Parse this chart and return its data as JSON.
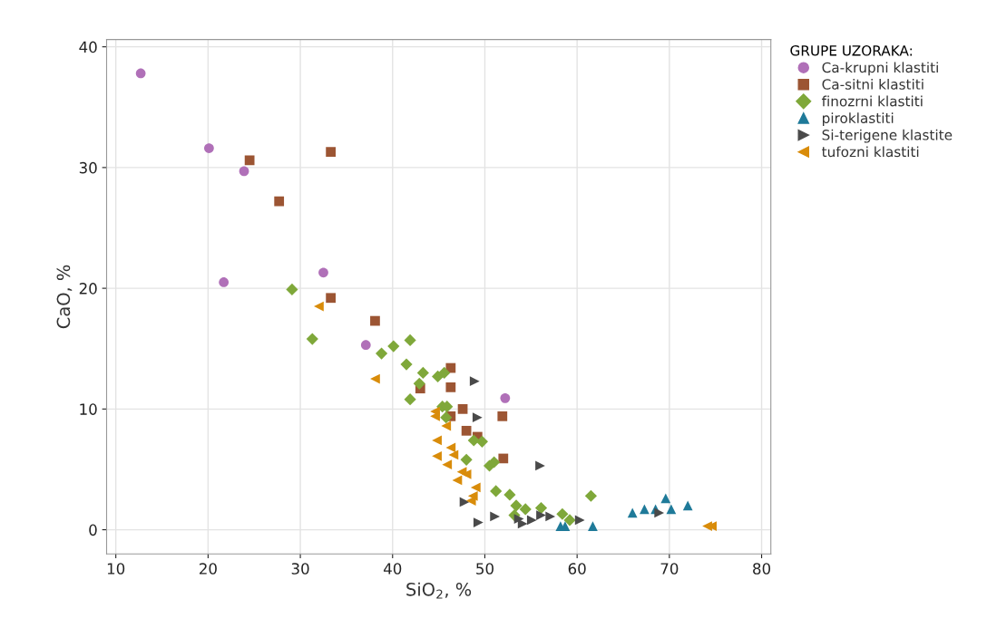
{
  "chart_data": {
    "type": "scatter",
    "xlabel": "SiO$_{2}$, %",
    "ylabel": "CaO, %",
    "legend_title": "GRUPE UZORAKA:",
    "xlim": [
      9,
      81
    ],
    "ylim": [
      -2,
      40.6
    ],
    "xticks": [
      10,
      20,
      30,
      40,
      50,
      60,
      70,
      80
    ],
    "yticks": [
      0,
      10,
      20,
      30,
      40
    ],
    "grid": true,
    "legend": "top right",
    "series": [
      {
        "name": "Ca-krupni klastiti",
        "color": "#b070b8",
        "marker": "circle",
        "x": [
          12.7,
          20.1,
          23.9,
          21.7,
          32.5,
          37.1,
          52.2
        ],
        "values": [
          37.8,
          31.6,
          29.7,
          20.5,
          21.3,
          15.3,
          10.9
        ]
      },
      {
        "name": "Ca-sitni klastiti",
        "color": "#9c5533",
        "marker": "square",
        "x": [
          24.5,
          33.3,
          27.7,
          33.3,
          38.1,
          46.3,
          46.3,
          47.6,
          51.9,
          46.3,
          48.0,
          49.2,
          52.0,
          43.0
        ],
        "values": [
          30.6,
          31.3,
          27.2,
          19.2,
          17.3,
          13.4,
          11.8,
          10.0,
          9.4,
          9.4,
          8.2,
          7.7,
          5.9,
          11.7
        ]
      },
      {
        "name": "finozrni klastiti",
        "color": "#7fa83a",
        "marker": "diamond",
        "x": [
          29.1,
          31.3,
          38.8,
          40.1,
          41.9,
          41.5,
          43.3,
          42.9,
          41.9,
          44.9,
          45.6,
          45.4,
          45.9,
          45.8,
          48.8,
          49.7,
          48.0,
          50.5,
          51.0,
          51.2,
          52.7,
          53.4,
          54.4,
          56.1,
          53.2,
          58.4,
          59.2,
          61.5
        ],
        "values": [
          19.9,
          15.8,
          14.6,
          15.2,
          15.7,
          13.7,
          13.0,
          12.1,
          10.8,
          12.7,
          13.0,
          10.2,
          10.2,
          9.3,
          7.4,
          7.3,
          5.8,
          5.3,
          5.6,
          3.2,
          2.9,
          2.0,
          1.7,
          1.8,
          1.2,
          1.3,
          0.8,
          2.8
        ]
      },
      {
        "name": "piroklastiti",
        "color": "#1f7a99",
        "marker": "triangle",
        "x": [
          58.2,
          58.7,
          61.7,
          66.0,
          67.3,
          68.5,
          69.6,
          70.2,
          72.0
        ],
        "values": [
          0.3,
          0.3,
          0.3,
          1.4,
          1.7,
          1.7,
          2.6,
          1.7,
          2.0
        ]
      },
      {
        "name": "Si-terigene klastite",
        "color": "#4a4a4a",
        "marker": "triangle_right",
        "x": [
          48.9,
          49.2,
          56.0,
          47.8,
          49.3,
          51.1,
          53.7,
          54.1,
          55.1,
          56.1,
          57.1,
          60.3,
          68.9
        ],
        "values": [
          12.3,
          9.3,
          5.3,
          2.3,
          0.6,
          1.1,
          0.9,
          0.5,
          0.8,
          1.2,
          1.1,
          0.8,
          1.4
        ]
      },
      {
        "name": "tufozni klastiti",
        "color": "#d98c0a",
        "marker": "triangle_left",
        "x": [
          32.0,
          38.1,
          44.6,
          44.6,
          45.8,
          44.8,
          46.3,
          46.6,
          44.8,
          45.9,
          47.5,
          48.0,
          47.0,
          49.0,
          48.7,
          48.5,
          74.1,
          74.6
        ],
        "values": [
          18.5,
          12.5,
          9.8,
          9.4,
          8.6,
          7.4,
          6.8,
          6.2,
          6.1,
          5.4,
          4.8,
          4.6,
          4.1,
          3.5,
          2.8,
          2.4,
          0.3,
          0.3
        ]
      }
    ]
  }
}
